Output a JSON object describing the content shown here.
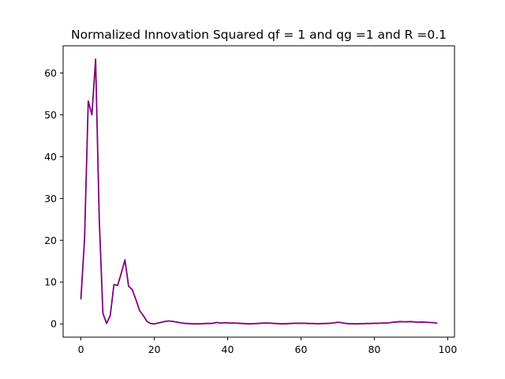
{
  "chart_data": {
    "type": "line",
    "title": "Normalized Innovation Squared qf = 1 and qg =1 and  R =0.1",
    "xlabel": "",
    "ylabel": "",
    "xlim": [
      -4.85,
      101.85
    ],
    "ylim": [
      -3.17,
      66.5
    ],
    "xticks": [
      0,
      20,
      40,
      60,
      80,
      100
    ],
    "yticks": [
      0,
      10,
      20,
      30,
      40,
      50,
      60
    ],
    "grid": false,
    "color": "#800080",
    "series": [
      {
        "x": [
          0,
          1,
          2,
          3,
          4,
          5,
          6,
          7,
          8,
          9,
          10,
          11,
          12,
          13,
          14,
          15,
          16,
          17,
          18,
          19,
          20,
          21,
          22,
          23,
          24,
          25,
          26,
          27,
          28,
          29,
          30,
          31,
          32,
          33,
          34,
          35,
          36,
          37,
          38,
          39,
          40,
          41,
          42,
          43,
          44,
          45,
          46,
          47,
          48,
          49,
          50,
          51,
          52,
          53,
          54,
          55,
          56,
          57,
          58,
          59,
          60,
          61,
          62,
          63,
          64,
          65,
          66,
          67,
          68,
          69,
          70,
          71,
          72,
          73,
          74,
          75,
          76,
          77,
          78,
          79,
          80,
          81,
          82,
          83,
          84,
          85,
          86,
          87,
          88,
          89,
          90,
          91,
          92,
          93,
          94,
          95,
          96,
          97
        ],
        "values": [
          6.0,
          20.5,
          53.3,
          50.0,
          63.3,
          25.0,
          2.5,
          0.1,
          2.0,
          9.4,
          9.2,
          12.1,
          15.3,
          9.0,
          8.2,
          5.8,
          3.2,
          2.0,
          0.6,
          0.1,
          0.0,
          0.2,
          0.4,
          0.6,
          0.7,
          0.6,
          0.45,
          0.3,
          0.15,
          0.1,
          0.05,
          0.0,
          0.0,
          0.05,
          0.1,
          0.1,
          0.15,
          0.35,
          0.2,
          0.25,
          0.25,
          0.2,
          0.2,
          0.15,
          0.1,
          0.05,
          0.0,
          0.05,
          0.1,
          0.15,
          0.2,
          0.2,
          0.15,
          0.1,
          0.05,
          0.0,
          0.05,
          0.1,
          0.15,
          0.15,
          0.15,
          0.15,
          0.1,
          0.1,
          0.05,
          0.05,
          0.1,
          0.1,
          0.15,
          0.25,
          0.4,
          0.3,
          0.15,
          0.05,
          0.05,
          0.0,
          0.05,
          0.05,
          0.1,
          0.1,
          0.15,
          0.15,
          0.2,
          0.2,
          0.25,
          0.4,
          0.45,
          0.55,
          0.5,
          0.5,
          0.55,
          0.45,
          0.4,
          0.45,
          0.4,
          0.35,
          0.3,
          0.2
        ]
      }
    ]
  }
}
